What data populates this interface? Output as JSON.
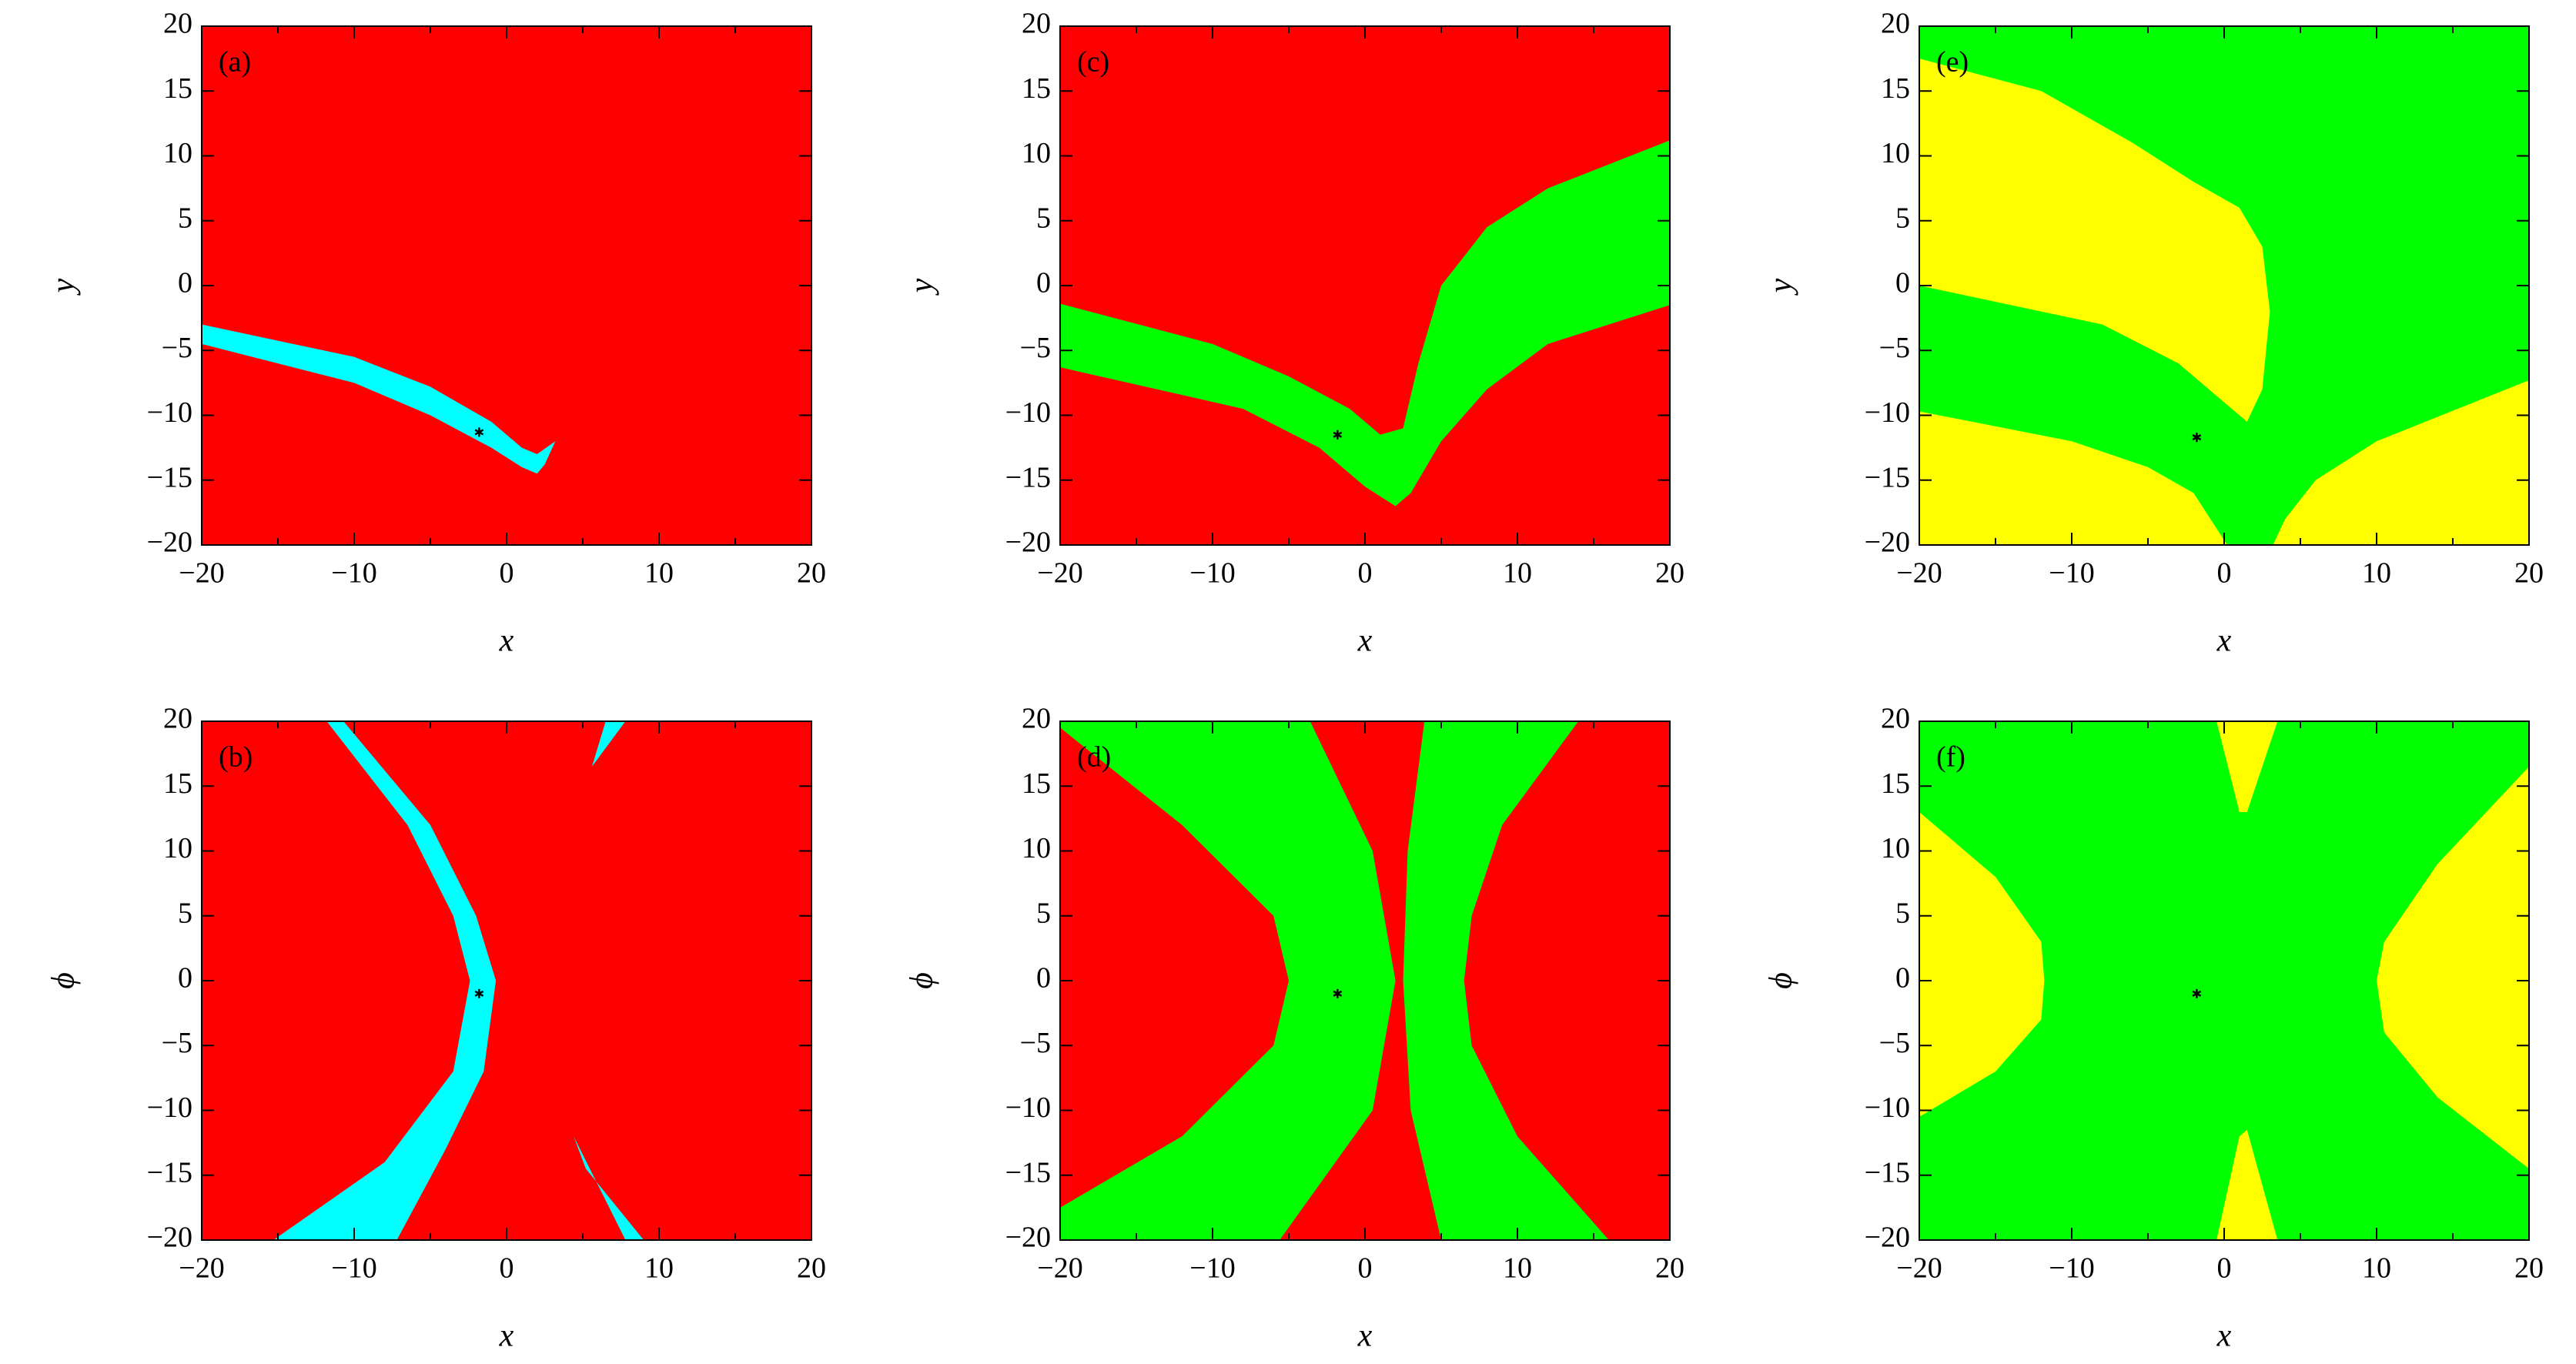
{
  "chart_data": [
    {
      "type": "basin",
      "panel_label": "(a)",
      "xlabel": "x",
      "ylabel": "y",
      "background": "#ff0000",
      "xlim": [
        -20,
        20
      ],
      "ylim": [
        -20,
        20
      ],
      "xticks": [
        {
          "value": -20,
          "label": "−20"
        },
        {
          "value": -10,
          "label": "−10"
        },
        0,
        10,
        20
      ],
      "xminor": [
        -15,
        -5,
        5,
        15
      ],
      "yticks": [
        {
          "value": -20,
          "label": "−20"
        },
        {
          "value": -15,
          "label": "−15"
        },
        {
          "value": -10,
          "label": "−10"
        },
        {
          "value": -5,
          "label": "−5"
        },
        0,
        5,
        10,
        15,
        20
      ],
      "regions": [
        {
          "color": "#00ffff",
          "x": [
            -20,
            -10,
            -5,
            -1,
            1,
            2,
            3.2,
            2.5,
            2,
            1,
            -1,
            -5,
            -10,
            -20
          ],
          "y": [
            -3,
            -5.5,
            -7.8,
            -10.5,
            -12.5,
            -13,
            -12,
            -13.8,
            -14.5,
            -14,
            -12.5,
            -10,
            -7.5,
            -4.5
          ]
        }
      ],
      "marker": {
        "x": -1.8,
        "y": -11.3
      }
    },
    {
      "type": "basin",
      "panel_label": "(b)",
      "xlabel": "x",
      "ylabel": "ϕ",
      "background": "#ff0000",
      "xlim": [
        -20,
        20
      ],
      "ylim": [
        -20,
        20
      ],
      "xticks": [
        {
          "value": -20,
          "label": "−20"
        },
        {
          "value": -10,
          "label": "−10"
        },
        0,
        10,
        20
      ],
      "xminor": [
        -15,
        -5,
        5,
        15
      ],
      "yticks": [
        {
          "value": -20,
          "label": "−20"
        },
        {
          "value": -15,
          "label": "−15"
        },
        {
          "value": -10,
          "label": "−10"
        },
        {
          "value": -5,
          "label": "−5"
        },
        0,
        5,
        10,
        15,
        20
      ],
      "regions": [
        {
          "color": "#00ffff",
          "x": [
            -11.8,
            -10.7,
            -5,
            -2,
            -0.7,
            -1.5,
            -4,
            -7.2,
            -15.3,
            -8,
            -3.5,
            -2.4,
            -3.5,
            -6.5
          ],
          "y": [
            20,
            20,
            12,
            5,
            0,
            -7,
            -13,
            -20,
            -20,
            -14,
            -7,
            0,
            5,
            12
          ]
        },
        {
          "color": "#00ffff",
          "x": [
            6.5,
            7.8,
            5.6
          ],
          "y": [
            20,
            20,
            16.5
          ]
        },
        {
          "color": "#00ffff",
          "x": [
            4.4,
            7.8,
            9,
            5.2
          ],
          "y": [
            -12,
            -20,
            -20,
            -14.5
          ]
        }
      ],
      "marker": {
        "x": -1.8,
        "y": -1
      }
    },
    {
      "type": "basin",
      "panel_label": "(c)",
      "xlabel": "x",
      "ylabel": "y",
      "background": "#ff0000",
      "xlim": [
        -20,
        20
      ],
      "ylim": [
        -20,
        20
      ],
      "xticks": [
        {
          "value": -20,
          "label": "−20"
        },
        {
          "value": -10,
          "label": "−10"
        },
        0,
        10,
        20
      ],
      "xminor": [
        -15,
        -5,
        5,
        15
      ],
      "yticks": [
        {
          "value": -20,
          "label": "−20"
        },
        {
          "value": -15,
          "label": "−15"
        },
        {
          "value": -10,
          "label": "−10"
        },
        {
          "value": -5,
          "label": "−5"
        },
        0,
        5,
        10,
        15,
        20
      ],
      "regions": [
        {
          "color": "#00ff00",
          "x": [
            -20,
            -10,
            -5,
            -1,
            1,
            2.5,
            3.5,
            5,
            8,
            12,
            20,
            20,
            12,
            8,
            5,
            3,
            2,
            0,
            -3,
            -8,
            -20
          ],
          "y": [
            -1.4,
            -4.5,
            -7,
            -9.5,
            -11.5,
            -11,
            -6,
            0,
            4.5,
            7.5,
            11.2,
            -1.5,
            -4.5,
            -8,
            -12,
            -16,
            -17,
            -15.5,
            -12.5,
            -9.5,
            -6.3
          ]
        }
      ],
      "marker": {
        "x": -1.8,
        "y": -11.5
      }
    },
    {
      "type": "basin",
      "panel_label": "(d)",
      "xlabel": "x",
      "ylabel": "ϕ",
      "background": "#ff0000",
      "xlim": [
        -20,
        20
      ],
      "ylim": [
        -20,
        20
      ],
      "xticks": [
        {
          "value": -20,
          "label": "−20"
        },
        {
          "value": -10,
          "label": "−10"
        },
        0,
        10,
        20
      ],
      "xminor": [
        -15,
        -5,
        5,
        15
      ],
      "yticks": [
        {
          "value": -20,
          "label": "−20"
        },
        {
          "value": -15,
          "label": "−15"
        },
        {
          "value": -10,
          "label": "−10"
        },
        {
          "value": -5,
          "label": "−5"
        },
        0,
        5,
        10,
        15,
        20
      ],
      "regions": [
        {
          "color": "#00ff00",
          "x": [
            -20,
            -3.6,
            0.5,
            2,
            0.5,
            -5.6,
            -20,
            -20,
            -12,
            -6,
            -5,
            -6,
            -12,
            -20
          ],
          "y": [
            20,
            20,
            10,
            0,
            -10,
            -20,
            -20,
            -17.5,
            -12,
            -5,
            0,
            5,
            12,
            19.5
          ]
        },
        {
          "color": "#00ff00",
          "x": [
            3.9,
            14,
            9,
            7,
            6.5,
            7,
            10,
            16,
            5,
            3,
            2.5,
            2.8
          ],
          "y": [
            20,
            20,
            12,
            5,
            0,
            -5,
            -12,
            -20,
            -20,
            -10,
            0,
            10
          ]
        }
      ],
      "marker": {
        "x": -1.8,
        "y": -1
      }
    },
    {
      "type": "basin",
      "panel_label": "(e)",
      "xlabel": "x",
      "ylabel": "y",
      "background": "#00ff00",
      "xlim": [
        -20,
        20
      ],
      "ylim": [
        -20,
        20
      ],
      "xticks": [
        {
          "value": -20,
          "label": "−20"
        },
        {
          "value": -10,
          "label": "−10"
        },
        0,
        10,
        20
      ],
      "xminor": [
        -15,
        -5,
        5,
        15
      ],
      "yticks": [
        {
          "value": -20,
          "label": "−20"
        },
        {
          "value": -15,
          "label": "−15"
        },
        {
          "value": -10,
          "label": "−10"
        },
        {
          "value": -5,
          "label": "−5"
        },
        0,
        5,
        10,
        15,
        20
      ],
      "regions": [
        {
          "color": "#ffff00",
          "x": [
            -20,
            -12,
            -6,
            -2,
            1,
            2.5,
            3,
            2.5,
            1.5,
            0,
            -3,
            -8,
            -20
          ],
          "y": [
            17.5,
            15,
            11,
            8,
            6,
            3,
            -2,
            -8,
            -10.5,
            -9,
            -6,
            -3,
            0
          ]
        },
        {
          "color": "#ffff00",
          "x": [
            -20,
            -10,
            -5,
            -2,
            0.2,
            -20
          ],
          "y": [
            -9.7,
            -12,
            -14,
            -16,
            -20,
            -20
          ]
        },
        {
          "color": "#ffff00",
          "x": [
            20,
            10,
            6,
            4,
            3.2,
            20
          ],
          "y": [
            -7.3,
            -12,
            -15,
            -18,
            -20,
            -20
          ]
        }
      ],
      "marker": {
        "x": -1.8,
        "y": -11.7
      }
    },
    {
      "type": "basin",
      "panel_label": "(f)",
      "xlabel": "x",
      "ylabel": "ϕ",
      "background": "#00ff00",
      "xlim": [
        -20,
        20
      ],
      "ylim": [
        -20,
        20
      ],
      "xticks": [
        {
          "value": -20,
          "label": "−20"
        },
        {
          "value": -10,
          "label": "−10"
        },
        0,
        10,
        20
      ],
      "xminor": [
        -15,
        -5,
        5,
        15
      ],
      "yticks": [
        {
          "value": -20,
          "label": "−20"
        },
        {
          "value": -15,
          "label": "−15"
        },
        {
          "value": -10,
          "label": "−10"
        },
        {
          "value": -5,
          "label": "−5"
        },
        0,
        5,
        10,
        15,
        20
      ],
      "regions": [
        {
          "color": "#ffff00",
          "x": [
            -20,
            -15,
            -12,
            -11.8,
            -12,
            -15,
            -20
          ],
          "y": [
            13,
            8,
            3,
            0,
            -3,
            -7,
            -10.5
          ]
        },
        {
          "color": "#ffff00",
          "x": [
            20,
            14,
            10.5,
            10,
            10.5,
            14,
            20
          ],
          "y": [
            16.5,
            9,
            3,
            0,
            -4,
            -9,
            -14.5
          ]
        },
        {
          "color": "#ffff00",
          "x": [
            -0.5,
            1,
            1.5,
            3.5
          ],
          "y": [
            20,
            13,
            13,
            20
          ]
        },
        {
          "color": "#ffff00",
          "x": [
            -0.5,
            1,
            1.5,
            3.5
          ],
          "y": [
            -20,
            -12,
            -11.5,
            -20
          ]
        }
      ],
      "marker": {
        "x": -1.8,
        "y": -1
      }
    }
  ]
}
